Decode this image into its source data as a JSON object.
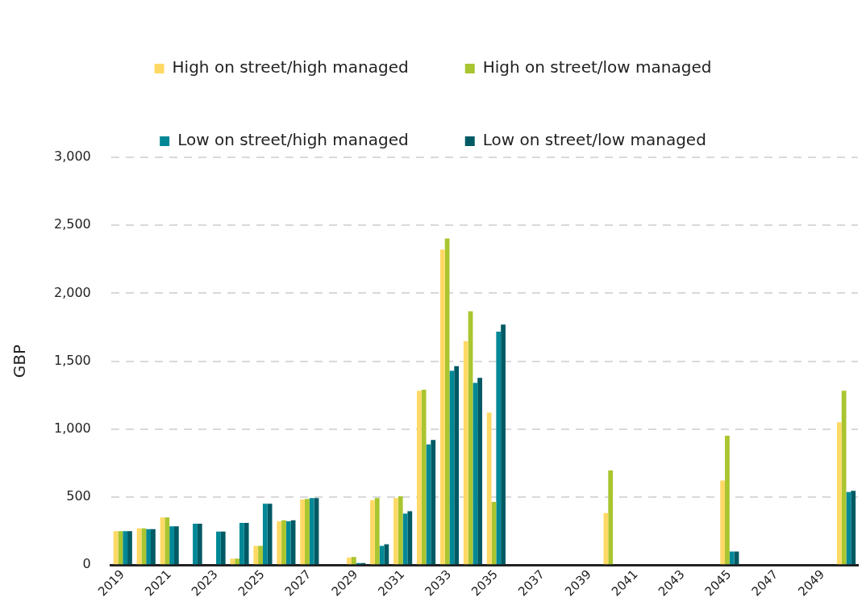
{
  "chart_data": {
    "type": "bar",
    "ylabel": "GBP",
    "categories": [
      "2019",
      null,
      "2021",
      null,
      "2023",
      null,
      "2025",
      null,
      "2027",
      null,
      "2029",
      null,
      "2031",
      null,
      "2033",
      null,
      "2035",
      null,
      "2037",
      null,
      "2039",
      null,
      "2041",
      null,
      "2043",
      null,
      "2045",
      null,
      "2047",
      null,
      "2049",
      null
    ],
    "series": [
      {
        "name": "High on street/high managed",
        "color": "#ffd966",
        "values": [
          250,
          270,
          350,
          0,
          0,
          47,
          141,
          322,
          482,
          0,
          55,
          478,
          493,
          1282,
          2322,
          1648,
          1122,
          0,
          0,
          0,
          0,
          383,
          0,
          0,
          0,
          0,
          622,
          0,
          0,
          0,
          0,
          1051
        ]
      },
      {
        "name": "High on street/low managed",
        "color": "#a9c52f",
        "values": [
          250,
          270,
          350,
          0,
          0,
          47,
          141,
          330,
          487,
          0,
          60,
          493,
          507,
          1290,
          2403,
          1868,
          465,
          0,
          0,
          0,
          0,
          697,
          0,
          0,
          0,
          0,
          952,
          0,
          0,
          0,
          0,
          1282
        ]
      },
      {
        "name": "Low on street/high managed",
        "color": "#008896",
        "values": [
          250,
          265,
          285,
          304,
          247,
          311,
          452,
          322,
          493,
          0,
          15,
          141,
          378,
          888,
          1429,
          1341,
          1717,
          0,
          0,
          0,
          0,
          0,
          0,
          0,
          0,
          0,
          100,
          0,
          0,
          0,
          0,
          538
        ]
      },
      {
        "name": "Low on street/low managed",
        "color": "#005a64",
        "values": [
          250,
          265,
          285,
          304,
          247,
          311,
          452,
          330,
          493,
          0,
          15,
          153,
          396,
          920,
          1463,
          1378,
          1770,
          0,
          0,
          0,
          0,
          0,
          0,
          0,
          0,
          0,
          100,
          0,
          0,
          0,
          0,
          546
        ]
      }
    ],
    "ylim": [
      0,
      3000
    ],
    "yticks": [
      0,
      500,
      {
        "value": 1000,
        "label": "1,000"
      },
      {
        "value": 1500,
        "label": "1,500"
      },
      {
        "value": 2000,
        "label": "2,000"
      },
      {
        "value": 2500,
        "label": "2,500"
      },
      {
        "value": 3000,
        "label": "3,000"
      }
    ],
    "grid": "y",
    "legend": "top"
  }
}
